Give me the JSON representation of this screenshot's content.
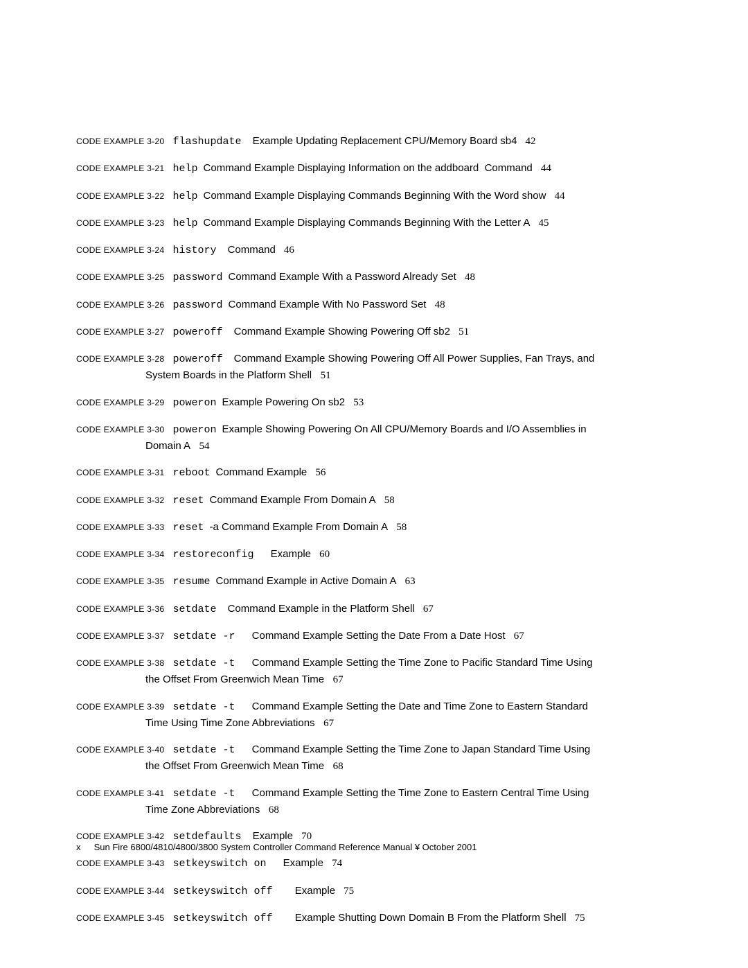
{
  "entries": [
    {
      "label": "CODE EXAMPLE 3-20",
      "cmd": "flashupdate",
      "gap": "    ",
      "desc": "Example Updating Replacement CPU/Memory Board sb4",
      "page": "42"
    },
    {
      "label": "CODE EXAMPLE 3-21",
      "cmd": "help",
      "gap": "  ",
      "desc": "Command Example Displaying Information on the addboard  Command",
      "page": "44"
    },
    {
      "label": "CODE EXAMPLE 3-22",
      "cmd": "help",
      "gap": "  ",
      "desc": "Command Example Displaying Commands Beginning With the Word show",
      "page": "44"
    },
    {
      "label": "CODE EXAMPLE 3-23",
      "cmd": "help",
      "gap": "  ",
      "desc": "Command Example Displaying Commands Beginning With the Letter A",
      "page": "45"
    },
    {
      "label": "CODE EXAMPLE 3-24",
      "cmd": "history",
      "gap": "    ",
      "desc": "Command",
      "page": "46"
    },
    {
      "label": "CODE EXAMPLE 3-25",
      "cmd": "password",
      "gap": "  ",
      "desc": "Command Example With a Password Already Set",
      "page": "48"
    },
    {
      "label": "CODE EXAMPLE 3-26",
      "cmd": "password",
      "gap": "  ",
      "desc": "Command Example With No Password Set",
      "page": "48"
    },
    {
      "label": "CODE EXAMPLE 3-27",
      "cmd": "poweroff",
      "gap": "    ",
      "desc": "Command Example Showing Powering Off sb2",
      "page": "51"
    },
    {
      "label": "CODE EXAMPLE 3-28",
      "cmd": "poweroff",
      "gap": "    ",
      "desc": "Command Example Showing Powering Off All Power Supplies, Fan Trays, and",
      "page": "",
      "cont": "System Boards in the Platform Shell   ",
      "contPage": "51"
    },
    {
      "label": "CODE EXAMPLE 3-29",
      "cmd": "poweron",
      "gap": "  ",
      "desc": "Example Powering On sb2",
      "page": "53"
    },
    {
      "label": "CODE EXAMPLE 3-30",
      "cmd": "poweron",
      "gap": "  ",
      "desc": "Example Showing Powering On All CPU/Memory Boards and I/O Assemblies in",
      "page": "",
      "cont": "Domain A   ",
      "contPage": "54"
    },
    {
      "label": "CODE EXAMPLE 3-31",
      "cmd": "reboot",
      "gap": "  ",
      "desc": "Command Example",
      "page": "56"
    },
    {
      "label": "CODE EXAMPLE 3-32",
      "cmd": "reset",
      "gap": "  ",
      "desc": "Command Example From Domain A",
      "page": "58"
    },
    {
      "label": "CODE EXAMPLE 3-33",
      "cmd": "reset",
      "gap": "  ",
      "desc": "-a Command Example From Domain A",
      "page": "58"
    },
    {
      "label": "CODE EXAMPLE 3-34",
      "cmd": "restoreconfig",
      "gap": "      ",
      "desc": "Example",
      "page": "60"
    },
    {
      "label": "CODE EXAMPLE 3-35",
      "cmd": "resume",
      "gap": "  ",
      "desc": "Command Example in Active Domain A",
      "page": "63"
    },
    {
      "label": "CODE EXAMPLE 3-36",
      "cmd": "setdate",
      "gap": "    ",
      "desc": "Command Example in the Platform Shell",
      "page": "67"
    },
    {
      "label": "CODE EXAMPLE 3-37",
      "cmd": "setdate -r",
      "gap": "      ",
      "desc": "Command Example Setting the Date From a Date Host",
      "page": "67"
    },
    {
      "label": "CODE EXAMPLE 3-38",
      "cmd": "setdate -t",
      "gap": "      ",
      "desc": "Command Example Setting the Time Zone to Pacific Standard Time Using",
      "page": "",
      "cont": "the Offset From Greenwich Mean Time   ",
      "contPage": "67"
    },
    {
      "label": "CODE EXAMPLE 3-39",
      "cmd": "setdate -t",
      "gap": "      ",
      "desc": "Command Example Setting the Date and Time Zone to Eastern Standard",
      "page": "",
      "cont": "Time Using Time Zone Abbreviations   ",
      "contPage": "67"
    },
    {
      "label": "CODE EXAMPLE 3-40",
      "cmd": "setdate -t",
      "gap": "      ",
      "desc": "Command Example Setting the Time Zone to Japan Standard Time Using",
      "page": "",
      "cont": "the Offset From Greenwich Mean Time   ",
      "contPage": "68"
    },
    {
      "label": "CODE EXAMPLE 3-41",
      "cmd": "setdate -t",
      "gap": "      ",
      "desc": "Command Example Setting the Time Zone to Eastern Central Time Using",
      "page": "",
      "cont": "Time Zone Abbreviations   ",
      "contPage": "68"
    },
    {
      "label": "CODE EXAMPLE 3-42",
      "cmd": "setdefaults",
      "gap": "    ",
      "desc": "Example",
      "page": "70"
    },
    {
      "label": "CODE EXAMPLE 3-43",
      "cmd": "setkeyswitch on",
      "gap": "      ",
      "desc": "Example",
      "page": "74"
    },
    {
      "label": "CODE EXAMPLE 3-44",
      "cmd": "setkeyswitch off",
      "gap": "        ",
      "desc": "Example",
      "page": "75"
    },
    {
      "label": "CODE EXAMPLE 3-45",
      "cmd": "setkeyswitch off",
      "gap": "        ",
      "desc": "Example Shutting Down Domain B From the Platform Shell",
      "page": "75"
    }
  ],
  "footer": {
    "pageNumber": "x",
    "title": "Sun Fire 6800/4810/4800/3800 System Controller Command Reference Manual  ¥  October 2001"
  }
}
